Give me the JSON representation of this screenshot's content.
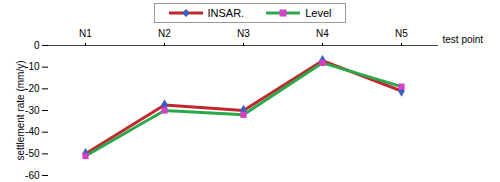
{
  "chart_data": {
    "type": "line",
    "x_label": "test point",
    "y_label": "settlement rate (mm/y)",
    "categories": [
      "N1",
      "N2",
      "N3",
      "N4",
      "N5"
    ],
    "series": [
      {
        "name": "INSAR.",
        "color": "#c0282d",
        "marker": "diamond",
        "values": [
          -50,
          -27.5,
          -30,
          -7,
          -21
        ]
      },
      {
        "name": "Level",
        "color": "#2aa84a",
        "marker": "square",
        "values": [
          -51,
          -30,
          -32,
          -8,
          -19
        ]
      }
    ],
    "ylim": [
      -60,
      0
    ],
    "yticks": [
      -60,
      -50,
      -40,
      -30,
      -20,
      -10,
      0
    ],
    "grid": false,
    "legend": "top"
  }
}
